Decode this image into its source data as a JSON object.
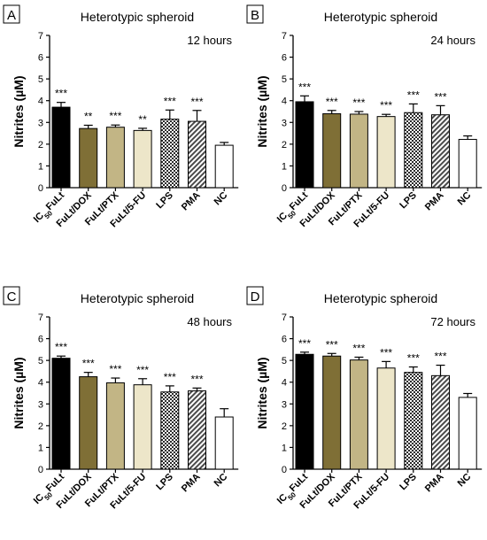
{
  "figure": {
    "ylabel": "Nitrites (µM)",
    "categories": [
      "IC50FuLt",
      "FuLt/DOX",
      "FuLt/PTX",
      "FuLt/5-FU",
      "LPS",
      "PMA",
      "NC"
    ],
    "category_labels": [
      {
        "main": "IC",
        "sub": "50",
        "tail": "FuLt"
      },
      {
        "main": "FuLt/DOX",
        "sub": "",
        "tail": ""
      },
      {
        "main": "FuLt/PTX",
        "sub": "",
        "tail": ""
      },
      {
        "main": "FuLt/5-FU",
        "sub": "",
        "tail": ""
      },
      {
        "main": "LPS",
        "sub": "",
        "tail": ""
      },
      {
        "main": "PMA",
        "sub": "",
        "tail": ""
      },
      {
        "main": "NC",
        "sub": "",
        "tail": ""
      }
    ],
    "bar_fills": [
      "#000000",
      "#7f6f36",
      "#c2b585",
      "#ede6c9",
      "pattern-checker",
      "pattern-diagonal",
      "#ffffff"
    ],
    "pattern_colors": {
      "checker": "#2b2b2b",
      "diagonal": "#4a4a4a",
      "background": "#ffffff"
    }
  },
  "chart_data": [
    {
      "type": "bar",
      "panel_letter": "A",
      "title": "Heterotypic spheroid",
      "time_label": "12 hours",
      "categories": [
        "IC50FuLt",
        "FuLt/DOX",
        "FuLt/PTX",
        "FuLt/5-FU",
        "LPS",
        "PMA",
        "NC"
      ],
      "values": [
        3.7,
        2.72,
        2.78,
        2.63,
        3.15,
        3.05,
        1.95
      ],
      "errors": [
        0.22,
        0.15,
        0.1,
        0.1,
        0.42,
        0.5,
        0.13
      ],
      "significance": [
        "***",
        "**",
        "***",
        "**",
        "***",
        "***",
        ""
      ],
      "ylabel": "Nitrites (µM)",
      "ylim": [
        0,
        7
      ],
      "yticks": [
        0,
        1,
        2,
        3,
        4,
        5,
        6,
        7
      ]
    },
    {
      "type": "bar",
      "panel_letter": "B",
      "title": "Heterotypic spheroid",
      "time_label": "24 hours",
      "categories": [
        "IC50FuLt",
        "FuLt/DOX",
        "FuLt/PTX",
        "FuLt/5-FU",
        "LPS",
        "PMA",
        "NC"
      ],
      "values": [
        3.95,
        3.4,
        3.38,
        3.27,
        3.45,
        3.35,
        2.22
      ],
      "errors": [
        0.27,
        0.15,
        0.12,
        0.1,
        0.4,
        0.42,
        0.16
      ],
      "significance": [
        "***",
        "***",
        "***",
        "***",
        "***",
        "***",
        ""
      ],
      "ylabel": "Nitrites (µM)",
      "ylim": [
        0,
        7
      ],
      "yticks": [
        0,
        1,
        2,
        3,
        4,
        5,
        6,
        7
      ]
    },
    {
      "type": "bar",
      "panel_letter": "C",
      "title": "Heterotypic spheroid",
      "time_label": "48 hours",
      "categories": [
        "IC50FuLt",
        "FuLt/DOX",
        "FuLt/PTX",
        "FuLt/5-FU",
        "LPS",
        "PMA",
        "NC"
      ],
      "values": [
        5.1,
        4.25,
        3.97,
        3.88,
        3.55,
        3.6,
        2.4
      ],
      "errors": [
        0.1,
        0.2,
        0.22,
        0.28,
        0.28,
        0.13,
        0.38
      ],
      "significance": [
        "***",
        "***",
        "***",
        "***",
        "***",
        "***",
        ""
      ],
      "ylabel": "Nitrites (µM)",
      "ylim": [
        0,
        7
      ],
      "yticks": [
        0,
        1,
        2,
        3,
        4,
        5,
        6,
        7
      ]
    },
    {
      "type": "bar",
      "panel_letter": "D",
      "title": "Heterotypic spheroid",
      "time_label": "72 hours",
      "categories": [
        "IC50FuLt",
        "FuLt/DOX",
        "FuLt/PTX",
        "FuLt/5-FU",
        "LPS",
        "PMA",
        "NC"
      ],
      "values": [
        5.28,
        5.2,
        5.02,
        4.65,
        4.45,
        4.3,
        3.3
      ],
      "errors": [
        0.1,
        0.12,
        0.13,
        0.3,
        0.25,
        0.48,
        0.18
      ],
      "significance": [
        "***",
        "***",
        "***",
        "***",
        "***",
        "***",
        ""
      ],
      "ylabel": "Nitrites (µM)",
      "ylim": [
        0,
        7
      ],
      "yticks": [
        0,
        1,
        2,
        3,
        4,
        5,
        6,
        7
      ]
    }
  ]
}
